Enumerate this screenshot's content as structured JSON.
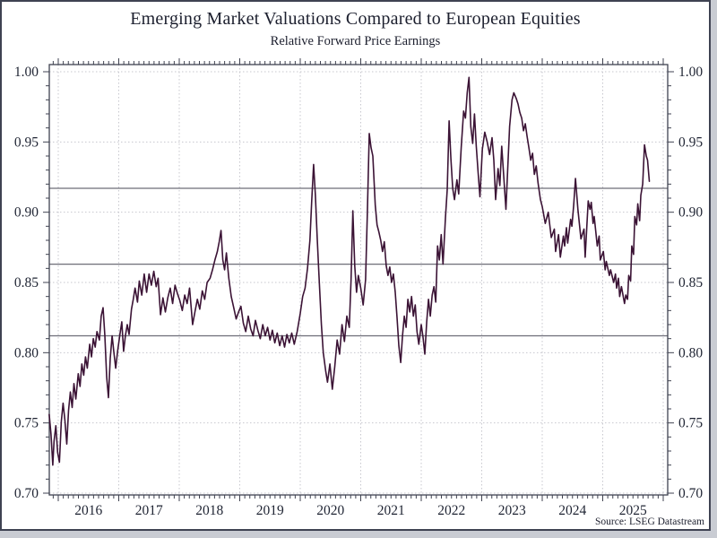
{
  "header": {
    "title": "Emerging Market Valuations Compared to European Equities",
    "subtitle": "Relative Forward Price Earnings"
  },
  "footer": {
    "source": "Source: LSEG Datastream"
  },
  "chart_data": {
    "type": "line",
    "title": "Emerging Market Valuations Compared to European Equities",
    "subtitle": "Relative Forward Price Earnings",
    "source": "Source: LSEG Datastream",
    "legend": "none",
    "grid": "dotted major gridlines, both axes",
    "x_axis": {
      "year_start": 2016,
      "year_end": 2026,
      "xlim": [
        2015.85,
        2026.07
      ],
      "labels": [
        "2016",
        "2017",
        "2018",
        "2019",
        "2020",
        "2021",
        "2022",
        "2023",
        "2024",
        "2025"
      ],
      "minor_tick": "monthly",
      "label_position": "centered mid-year, bottom"
    },
    "y_axis": {
      "min": 0.7,
      "max": 1.0,
      "major_step": 0.05,
      "minor_step": 0.01,
      "tick_labels": [
        "0.70",
        "0.75",
        "0.80",
        "0.85",
        "0.90",
        "0.95",
        "1.00"
      ],
      "sides": "both"
    },
    "reference_lines": [
      0.917,
      0.863,
      0.812
    ],
    "colors": {
      "line": "#3b1335",
      "reference_line": "#6e6e78",
      "grid": "#c7c7ce",
      "axis": "#3f4250",
      "text": "#1f2433"
    },
    "series": {
      "points": [
        [
          2015.85,
          0.756
        ],
        [
          2015.88,
          0.742
        ],
        [
          2015.91,
          0.72
        ],
        [
          2015.93,
          0.737
        ],
        [
          2015.96,
          0.748
        ],
        [
          2015.99,
          0.729
        ],
        [
          2016.02,
          0.722
        ],
        [
          2016.05,
          0.751
        ],
        [
          2016.08,
          0.764
        ],
        [
          2016.11,
          0.752
        ],
        [
          2016.14,
          0.735
        ],
        [
          2016.17,
          0.759
        ],
        [
          2016.2,
          0.772
        ],
        [
          2016.23,
          0.761
        ],
        [
          2016.26,
          0.778
        ],
        [
          2016.29,
          0.767
        ],
        [
          2016.33,
          0.785
        ],
        [
          2016.36,
          0.776
        ],
        [
          2016.39,
          0.792
        ],
        [
          2016.42,
          0.784
        ],
        [
          2016.45,
          0.797
        ],
        [
          2016.48,
          0.789
        ],
        [
          2016.52,
          0.806
        ],
        [
          2016.55,
          0.797
        ],
        [
          2016.58,
          0.81
        ],
        [
          2016.61,
          0.804
        ],
        [
          2016.64,
          0.815
        ],
        [
          2016.68,
          0.809
        ],
        [
          2016.71,
          0.826
        ],
        [
          2016.74,
          0.832
        ],
        [
          2016.77,
          0.812
        ],
        [
          2016.8,
          0.783
        ],
        [
          2016.83,
          0.768
        ],
        [
          2016.86,
          0.796
        ],
        [
          2016.89,
          0.812
        ],
        [
          2016.92,
          0.8
        ],
        [
          2016.95,
          0.789
        ],
        [
          2016.98,
          0.801
        ],
        [
          2017.02,
          0.813
        ],
        [
          2017.05,
          0.822
        ],
        [
          2017.08,
          0.801
        ],
        [
          2017.11,
          0.812
        ],
        [
          2017.14,
          0.82
        ],
        [
          2017.17,
          0.813
        ],
        [
          2017.21,
          0.831
        ],
        [
          2017.24,
          0.838
        ],
        [
          2017.27,
          0.846
        ],
        [
          2017.31,
          0.836
        ],
        [
          2017.34,
          0.851
        ],
        [
          2017.38,
          0.841
        ],
        [
          2017.42,
          0.856
        ],
        [
          2017.46,
          0.843
        ],
        [
          2017.5,
          0.856
        ],
        [
          2017.54,
          0.848
        ],
        [
          2017.58,
          0.858
        ],
        [
          2017.62,
          0.847
        ],
        [
          2017.65,
          0.853
        ],
        [
          2017.69,
          0.827
        ],
        [
          2017.73,
          0.839
        ],
        [
          2017.77,
          0.829
        ],
        [
          2017.81,
          0.839
        ],
        [
          2017.85,
          0.846
        ],
        [
          2017.89,
          0.835
        ],
        [
          2017.93,
          0.848
        ],
        [
          2017.97,
          0.842
        ],
        [
          2018.01,
          0.837
        ],
        [
          2018.05,
          0.83
        ],
        [
          2018.09,
          0.841
        ],
        [
          2018.13,
          0.835
        ],
        [
          2018.17,
          0.846
        ],
        [
          2018.22,
          0.82
        ],
        [
          2018.26,
          0.829
        ],
        [
          2018.3,
          0.838
        ],
        [
          2018.34,
          0.831
        ],
        [
          2018.38,
          0.844
        ],
        [
          2018.42,
          0.838
        ],
        [
          2018.46,
          0.85
        ],
        [
          2018.51,
          0.853
        ],
        [
          2018.55,
          0.859
        ],
        [
          2018.59,
          0.866
        ],
        [
          2018.63,
          0.872
        ],
        [
          2018.66,
          0.879
        ],
        [
          2018.69,
          0.887
        ],
        [
          2018.72,
          0.866
        ],
        [
          2018.75,
          0.859
        ],
        [
          2018.78,
          0.871
        ],
        [
          2018.82,
          0.853
        ],
        [
          2018.86,
          0.84
        ],
        [
          2018.9,
          0.832
        ],
        [
          2018.94,
          0.824
        ],
        [
          2018.98,
          0.829
        ],
        [
          2019.02,
          0.833
        ],
        [
          2019.06,
          0.821
        ],
        [
          2019.1,
          0.815
        ],
        [
          2019.14,
          0.826
        ],
        [
          2019.18,
          0.817
        ],
        [
          2019.22,
          0.812
        ],
        [
          2019.26,
          0.823
        ],
        [
          2019.3,
          0.816
        ],
        [
          2019.34,
          0.81
        ],
        [
          2019.38,
          0.82
        ],
        [
          2019.42,
          0.812
        ],
        [
          2019.46,
          0.818
        ],
        [
          2019.5,
          0.809
        ],
        [
          2019.54,
          0.816
        ],
        [
          2019.58,
          0.807
        ],
        [
          2019.62,
          0.814
        ],
        [
          2019.66,
          0.805
        ],
        [
          2019.7,
          0.812
        ],
        [
          2019.74,
          0.804
        ],
        [
          2019.78,
          0.813
        ],
        [
          2019.82,
          0.807
        ],
        [
          2019.86,
          0.814
        ],
        [
          2019.9,
          0.806
        ],
        [
          2019.95,
          0.815
        ],
        [
          2020.0,
          0.828
        ],
        [
          2020.04,
          0.84
        ],
        [
          2020.08,
          0.846
        ],
        [
          2020.12,
          0.86
        ],
        [
          2020.16,
          0.88
        ],
        [
          2020.19,
          0.908
        ],
        [
          2020.22,
          0.934
        ],
        [
          2020.25,
          0.912
        ],
        [
          2020.28,
          0.882
        ],
        [
          2020.31,
          0.855
        ],
        [
          2020.35,
          0.82
        ],
        [
          2020.38,
          0.8
        ],
        [
          2020.42,
          0.787
        ],
        [
          2020.45,
          0.779
        ],
        [
          2020.49,
          0.792
        ],
        [
          2020.53,
          0.774
        ],
        [
          2020.57,
          0.79
        ],
        [
          2020.61,
          0.809
        ],
        [
          2020.65,
          0.799
        ],
        [
          2020.69,
          0.82
        ],
        [
          2020.73,
          0.808
        ],
        [
          2020.77,
          0.826
        ],
        [
          2020.81,
          0.818
        ],
        [
          2020.84,
          0.852
        ],
        [
          2020.87,
          0.901
        ],
        [
          2020.9,
          0.862
        ],
        [
          2020.93,
          0.843
        ],
        [
          2020.96,
          0.855
        ],
        [
          2021.0,
          0.846
        ],
        [
          2021.04,
          0.834
        ],
        [
          2021.08,
          0.852
        ],
        [
          2021.11,
          0.9
        ],
        [
          2021.14,
          0.956
        ],
        [
          2021.17,
          0.946
        ],
        [
          2021.2,
          0.94
        ],
        [
          2021.24,
          0.905
        ],
        [
          2021.27,
          0.891
        ],
        [
          2021.3,
          0.886
        ],
        [
          2021.33,
          0.88
        ],
        [
          2021.36,
          0.872
        ],
        [
          2021.39,
          0.879
        ],
        [
          2021.42,
          0.862
        ],
        [
          2021.45,
          0.855
        ],
        [
          2021.48,
          0.861
        ],
        [
          2021.51,
          0.85
        ],
        [
          2021.54,
          0.856
        ],
        [
          2021.57,
          0.843
        ],
        [
          2021.6,
          0.825
        ],
        [
          2021.63,
          0.805
        ],
        [
          2021.66,
          0.793
        ],
        [
          2021.69,
          0.812
        ],
        [
          2021.72,
          0.826
        ],
        [
          2021.75,
          0.818
        ],
        [
          2021.78,
          0.838
        ],
        [
          2021.81,
          0.829
        ],
        [
          2021.84,
          0.84
        ],
        [
          2021.87,
          0.826
        ],
        [
          2021.9,
          0.834
        ],
        [
          2021.93,
          0.815
        ],
        [
          2021.96,
          0.806
        ],
        [
          2022.0,
          0.82
        ],
        [
          2022.03,
          0.811
        ],
        [
          2022.06,
          0.799
        ],
        [
          2022.09,
          0.822
        ],
        [
          2022.12,
          0.838
        ],
        [
          2022.15,
          0.826
        ],
        [
          2022.18,
          0.841
        ],
        [
          2022.21,
          0.847
        ],
        [
          2022.24,
          0.836
        ],
        [
          2022.27,
          0.876
        ],
        [
          2022.3,
          0.866
        ],
        [
          2022.33,
          0.884
        ],
        [
          2022.36,
          0.863
        ],
        [
          2022.4,
          0.896
        ],
        [
          2022.43,
          0.916
        ],
        [
          2022.46,
          0.965
        ],
        [
          2022.49,
          0.938
        ],
        [
          2022.52,
          0.917
        ],
        [
          2022.55,
          0.909
        ],
        [
          2022.59,
          0.923
        ],
        [
          2022.62,
          0.913
        ],
        [
          2022.66,
          0.946
        ],
        [
          2022.7,
          0.972
        ],
        [
          2022.73,
          0.967
        ],
        [
          2022.76,
          0.985
        ],
        [
          2022.79,
          0.996
        ],
        [
          2022.82,
          0.961
        ],
        [
          2022.85,
          0.949
        ],
        [
          2022.88,
          0.97
        ],
        [
          2022.91,
          0.947
        ],
        [
          2022.94,
          0.928
        ],
        [
          2022.97,
          0.911
        ],
        [
          2023.01,
          0.945
        ],
        [
          2023.05,
          0.957
        ],
        [
          2023.09,
          0.95
        ],
        [
          2023.13,
          0.941
        ],
        [
          2023.17,
          0.953
        ],
        [
          2023.2,
          0.937
        ],
        [
          2023.23,
          0.909
        ],
        [
          2023.27,
          0.931
        ],
        [
          2023.3,
          0.919
        ],
        [
          2023.33,
          0.947
        ],
        [
          2023.36,
          0.928
        ],
        [
          2023.4,
          0.902
        ],
        [
          2023.43,
          0.931
        ],
        [
          2023.46,
          0.961
        ],
        [
          2023.5,
          0.98
        ],
        [
          2023.53,
          0.985
        ],
        [
          2023.57,
          0.981
        ],
        [
          2023.6,
          0.977
        ],
        [
          2023.63,
          0.971
        ],
        [
          2023.66,
          0.967
        ],
        [
          2023.69,
          0.958
        ],
        [
          2023.72,
          0.963
        ],
        [
          2023.75,
          0.954
        ],
        [
          2023.78,
          0.946
        ],
        [
          2023.81,
          0.937
        ],
        [
          2023.84,
          0.942
        ],
        [
          2023.87,
          0.927
        ],
        [
          2023.9,
          0.933
        ],
        [
          2023.93,
          0.921
        ],
        [
          2023.97,
          0.909
        ],
        [
          2024.0,
          0.904
        ],
        [
          2024.05,
          0.892
        ],
        [
          2024.1,
          0.9
        ],
        [
          2024.15,
          0.882
        ],
        [
          2024.2,
          0.888
        ],
        [
          2024.22,
          0.872
        ],
        [
          2024.27,
          0.884
        ],
        [
          2024.3,
          0.868
        ],
        [
          2024.35,
          0.883
        ],
        [
          2024.37,
          0.876
        ],
        [
          2024.4,
          0.889
        ],
        [
          2024.42,
          0.878
        ],
        [
          2024.47,
          0.895
        ],
        [
          2024.49,
          0.89
        ],
        [
          2024.52,
          0.905
        ],
        [
          2024.55,
          0.924
        ],
        [
          2024.59,
          0.902
        ],
        [
          2024.64,
          0.881
        ],
        [
          2024.69,
          0.888
        ],
        [
          2024.71,
          0.868
        ],
        [
          2024.76,
          0.908
        ],
        [
          2024.79,
          0.902
        ],
        [
          2024.81,
          0.907
        ],
        [
          2024.84,
          0.892
        ],
        [
          2024.86,
          0.897
        ],
        [
          2024.91,
          0.876
        ],
        [
          2024.94,
          0.883
        ],
        [
          2024.96,
          0.866
        ],
        [
          2025.01,
          0.872
        ],
        [
          2025.04,
          0.859
        ],
        [
          2025.06,
          0.865
        ],
        [
          2025.11,
          0.855
        ],
        [
          2025.13,
          0.859
        ],
        [
          2025.18,
          0.85
        ],
        [
          2025.21,
          0.856
        ],
        [
          2025.23,
          0.846
        ],
        [
          2025.26,
          0.853
        ],
        [
          2025.28,
          0.84
        ],
        [
          2025.31,
          0.847
        ],
        [
          2025.36,
          0.835
        ],
        [
          2025.38,
          0.841
        ],
        [
          2025.41,
          0.838
        ],
        [
          2025.43,
          0.855
        ],
        [
          2025.46,
          0.851
        ],
        [
          2025.48,
          0.876
        ],
        [
          2025.51,
          0.87
        ],
        [
          2025.53,
          0.897
        ],
        [
          2025.56,
          0.891
        ],
        [
          2025.58,
          0.906
        ],
        [
          2025.61,
          0.894
        ],
        [
          2025.63,
          0.912
        ],
        [
          2025.66,
          0.92
        ],
        [
          2025.69,
          0.948
        ],
        [
          2025.72,
          0.94
        ],
        [
          2025.74,
          0.937
        ],
        [
          2025.77,
          0.922
        ]
      ]
    }
  }
}
